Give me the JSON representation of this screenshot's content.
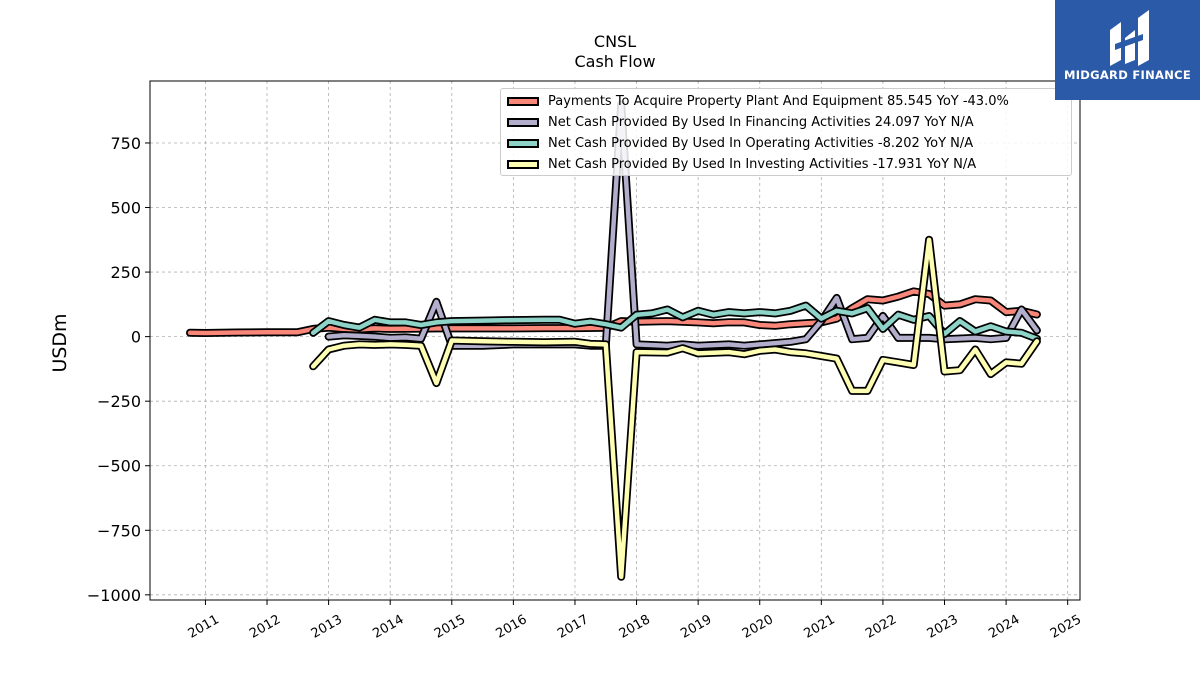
{
  "title": "CNSL",
  "subtitle": "Cash Flow",
  "logo": {
    "text": "MIDGARD FINANCE",
    "color": "#2b5aa8"
  },
  "legend": [
    "Payments To Acquire Property Plant And Equipment  85.545 YoY -43.0%",
    "Net Cash Provided By Used In Financing Activities  24.097 YoY N/A",
    "Net Cash Provided By Used In Operating Activities  -8.202 YoY N/A",
    "Net Cash Provided By Used In Investing Activities  -17.931 YoY N/A"
  ],
  "chart_data": {
    "type": "line",
    "ylabel": "USDm",
    "xlabel": "",
    "xlim": [
      2010.1,
      2025.2
    ],
    "ylim": [
      -1020,
      990
    ],
    "yticks": [
      750,
      500,
      250,
      0,
      -250,
      -500,
      -750,
      -1000
    ],
    "ytick_labels": [
      "750",
      "500",
      "250",
      "0",
      "−250",
      "−500",
      "−750",
      "−1000"
    ],
    "xticks": [
      2011,
      2012,
      2013,
      2014,
      2015,
      2016,
      2017,
      2018,
      2019,
      2020,
      2021,
      2022,
      2023,
      2024,
      2025
    ],
    "xtick_labels": [
      "2011",
      "2012",
      "2013",
      "2014",
      "2015",
      "2016",
      "2017",
      "2018",
      "2019",
      "2020",
      "2021",
      "2022",
      "2023",
      "2024",
      "2025"
    ],
    "grid": true,
    "legend_position": "top-right",
    "series": [
      {
        "name": "Payments To Acquire Property Plant And Equipment",
        "color": "#f8877a",
        "points": [
          [
            2010.75,
            15
          ],
          [
            2011.0,
            14
          ],
          [
            2011.5,
            16
          ],
          [
            2012.0,
            17
          ],
          [
            2012.5,
            17
          ],
          [
            2012.75,
            30
          ],
          [
            2013.0,
            35
          ],
          [
            2013.25,
            30
          ],
          [
            2013.5,
            28
          ],
          [
            2013.75,
            32
          ],
          [
            2014.0,
            30
          ],
          [
            2014.5,
            31
          ],
          [
            2014.75,
            32
          ],
          [
            2015.0,
            32
          ],
          [
            2015.5,
            32
          ],
          [
            2016.0,
            32
          ],
          [
            2016.5,
            33
          ],
          [
            2017.0,
            33
          ],
          [
            2017.5,
            34
          ],
          [
            2017.75,
            60
          ],
          [
            2018.0,
            58
          ],
          [
            2018.5,
            60
          ],
          [
            2018.75,
            58
          ],
          [
            2019.0,
            55
          ],
          [
            2019.25,
            52
          ],
          [
            2019.5,
            56
          ],
          [
            2019.75,
            55
          ],
          [
            2020.0,
            45
          ],
          [
            2020.25,
            42
          ],
          [
            2020.5,
            48
          ],
          [
            2020.75,
            52
          ],
          [
            2021.0,
            55
          ],
          [
            2021.25,
            70
          ],
          [
            2021.5,
            110
          ],
          [
            2021.75,
            145
          ],
          [
            2022.0,
            140
          ],
          [
            2022.25,
            155
          ],
          [
            2022.5,
            175
          ],
          [
            2022.75,
            165
          ],
          [
            2023.0,
            120
          ],
          [
            2023.25,
            125
          ],
          [
            2023.5,
            145
          ],
          [
            2023.75,
            140
          ],
          [
            2024.0,
            95
          ],
          [
            2024.25,
            100
          ],
          [
            2024.5,
            85.545
          ]
        ]
      },
      {
        "name": "Net Cash Provided By Used In Financing Activities",
        "color": "#b2aecb",
        "points": [
          [
            2013.0,
            0
          ],
          [
            2013.25,
            5
          ],
          [
            2013.5,
            3
          ],
          [
            2013.75,
            0
          ],
          [
            2014.0,
            -5
          ],
          [
            2014.25,
            -3
          ],
          [
            2014.5,
            -8
          ],
          [
            2014.75,
            135
          ],
          [
            2015.0,
            -35
          ],
          [
            2015.5,
            -35
          ],
          [
            2016.0,
            -30
          ],
          [
            2016.5,
            -30
          ],
          [
            2017.0,
            -30
          ],
          [
            2017.25,
            -35
          ],
          [
            2017.5,
            -35
          ],
          [
            2017.75,
            900
          ],
          [
            2018.0,
            -30
          ],
          [
            2018.5,
            -35
          ],
          [
            2018.75,
            -30
          ],
          [
            2019.0,
            -35
          ],
          [
            2019.5,
            -30
          ],
          [
            2019.75,
            -35
          ],
          [
            2020.0,
            -30
          ],
          [
            2020.25,
            -25
          ],
          [
            2020.5,
            -20
          ],
          [
            2020.75,
            -10
          ],
          [
            2021.0,
            60
          ],
          [
            2021.25,
            150
          ],
          [
            2021.5,
            -10
          ],
          [
            2021.75,
            -5
          ],
          [
            2022.0,
            80
          ],
          [
            2022.25,
            -5
          ],
          [
            2022.5,
            -5
          ],
          [
            2022.75,
            -5
          ],
          [
            2023.0,
            -10
          ],
          [
            2023.5,
            -5
          ],
          [
            2023.75,
            -10
          ],
          [
            2024.0,
            -5
          ],
          [
            2024.25,
            105
          ],
          [
            2024.5,
            24.097
          ]
        ]
      },
      {
        "name": "Net Cash Provided By Used In Operating Activities",
        "color": "#8dd3c7",
        "points": [
          [
            2012.75,
            15
          ],
          [
            2013.0,
            60
          ],
          [
            2013.25,
            45
          ],
          [
            2013.5,
            35
          ],
          [
            2013.75,
            65
          ],
          [
            2014.0,
            55
          ],
          [
            2014.25,
            55
          ],
          [
            2014.5,
            45
          ],
          [
            2014.75,
            55
          ],
          [
            2015.0,
            60
          ],
          [
            2015.5,
            62
          ],
          [
            2016.0,
            64
          ],
          [
            2016.5,
            65
          ],
          [
            2016.75,
            65
          ],
          [
            2017.0,
            50
          ],
          [
            2017.25,
            58
          ],
          [
            2017.5,
            48
          ],
          [
            2017.75,
            35
          ],
          [
            2018.0,
            85
          ],
          [
            2018.25,
            90
          ],
          [
            2018.5,
            105
          ],
          [
            2018.75,
            75
          ],
          [
            2019.0,
            100
          ],
          [
            2019.25,
            85
          ],
          [
            2019.5,
            95
          ],
          [
            2019.75,
            90
          ],
          [
            2020.0,
            95
          ],
          [
            2020.25,
            90
          ],
          [
            2020.5,
            100
          ],
          [
            2020.75,
            120
          ],
          [
            2021.0,
            70
          ],
          [
            2021.25,
            100
          ],
          [
            2021.5,
            90
          ],
          [
            2021.75,
            110
          ],
          [
            2022.0,
            30
          ],
          [
            2022.25,
            85
          ],
          [
            2022.5,
            65
          ],
          [
            2022.75,
            80
          ],
          [
            2023.0,
            10
          ],
          [
            2023.25,
            60
          ],
          [
            2023.5,
            20
          ],
          [
            2023.75,
            40
          ],
          [
            2024.0,
            20
          ],
          [
            2024.25,
            15
          ],
          [
            2024.5,
            -8.202
          ]
        ]
      },
      {
        "name": "Net Cash Provided By Used In Investing Activities",
        "color": "#ffffb3",
        "points": [
          [
            2012.75,
            -115
          ],
          [
            2013.0,
            -50
          ],
          [
            2013.25,
            -35
          ],
          [
            2013.5,
            -30
          ],
          [
            2013.75,
            -32
          ],
          [
            2014.0,
            -30
          ],
          [
            2014.25,
            -32
          ],
          [
            2014.5,
            -35
          ],
          [
            2014.75,
            -180
          ],
          [
            2015.0,
            -15
          ],
          [
            2015.5,
            -18
          ],
          [
            2016.0,
            -20
          ],
          [
            2016.5,
            -22
          ],
          [
            2017.0,
            -20
          ],
          [
            2017.25,
            -28
          ],
          [
            2017.5,
            -30
          ],
          [
            2017.75,
            -930
          ],
          [
            2018.0,
            -60
          ],
          [
            2018.5,
            -62
          ],
          [
            2018.75,
            -45
          ],
          [
            2019.0,
            -65
          ],
          [
            2019.5,
            -60
          ],
          [
            2019.75,
            -68
          ],
          [
            2020.0,
            -55
          ],
          [
            2020.25,
            -50
          ],
          [
            2020.5,
            -60
          ],
          [
            2020.75,
            -65
          ],
          [
            2021.0,
            -75
          ],
          [
            2021.25,
            -85
          ],
          [
            2021.5,
            -210
          ],
          [
            2021.75,
            -210
          ],
          [
            2022.0,
            -90
          ],
          [
            2022.25,
            -100
          ],
          [
            2022.5,
            -110
          ],
          [
            2022.75,
            375
          ],
          [
            2023.0,
            -135
          ],
          [
            2023.25,
            -130
          ],
          [
            2023.5,
            -50
          ],
          [
            2023.75,
            -145
          ],
          [
            2024.0,
            -100
          ],
          [
            2024.25,
            -105
          ],
          [
            2024.5,
            -17.931
          ]
        ]
      }
    ]
  }
}
